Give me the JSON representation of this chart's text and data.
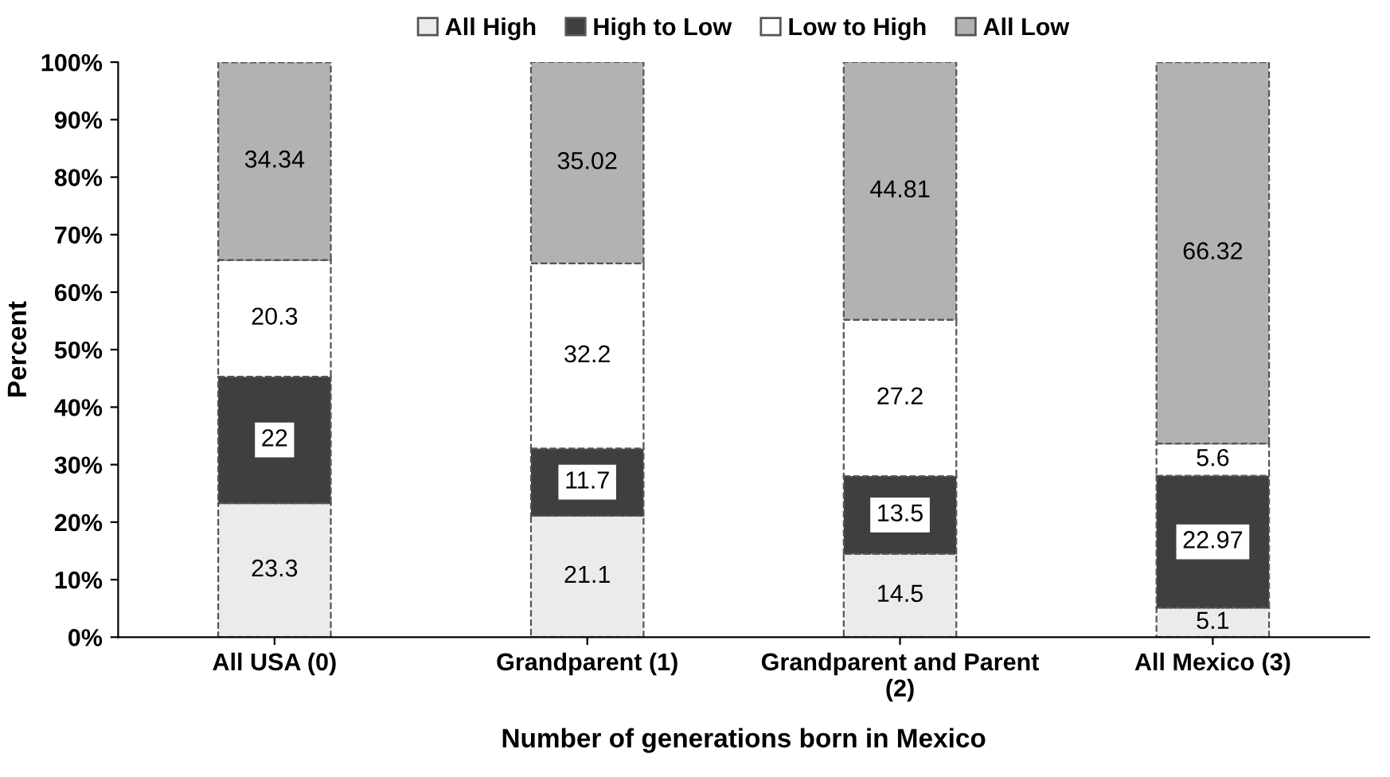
{
  "chart_data": {
    "type": "bar",
    "stacked": true,
    "xlabel": "Number of generations born in Mexico",
    "ylabel": "Percent",
    "categories": [
      "All USA (0)",
      "Grandparent (1)",
      "Grandparent and Parent\n(2)",
      "All Mexico (3)"
    ],
    "series": [
      {
        "name": "All High",
        "color": "#ebebeb",
        "values": [
          23.3,
          21.1,
          14.5,
          5.1
        ]
      },
      {
        "name": "High to Low",
        "color": "#3f3f3f",
        "values": [
          22,
          11.7,
          13.5,
          22.97
        ]
      },
      {
        "name": "Low to High",
        "color": "#ffffff",
        "values": [
          20.3,
          32.2,
          27.2,
          5.6
        ]
      },
      {
        "name": "All Low",
        "color": "#b2b2b2",
        "values": [
          34.34,
          35.02,
          44.81,
          66.32
        ]
      }
    ],
    "ylim": [
      0,
      100
    ],
    "yticks": [
      {
        "value": 0,
        "label": "0%"
      },
      {
        "value": 10,
        "label": "10%"
      },
      {
        "value": 20,
        "label": "20%"
      },
      {
        "value": 30,
        "label": "30%"
      },
      {
        "value": 40,
        "label": "40%"
      },
      {
        "value": 50,
        "label": "50%"
      },
      {
        "value": 60,
        "label": "60%"
      },
      {
        "value": 70,
        "label": "70%"
      },
      {
        "value": 80,
        "label": "80%"
      },
      {
        "value": 90,
        "label": "90%"
      },
      {
        "value": 100,
        "label": "100%"
      }
    ],
    "data_labels": true,
    "legend": "top",
    "grid": false
  }
}
